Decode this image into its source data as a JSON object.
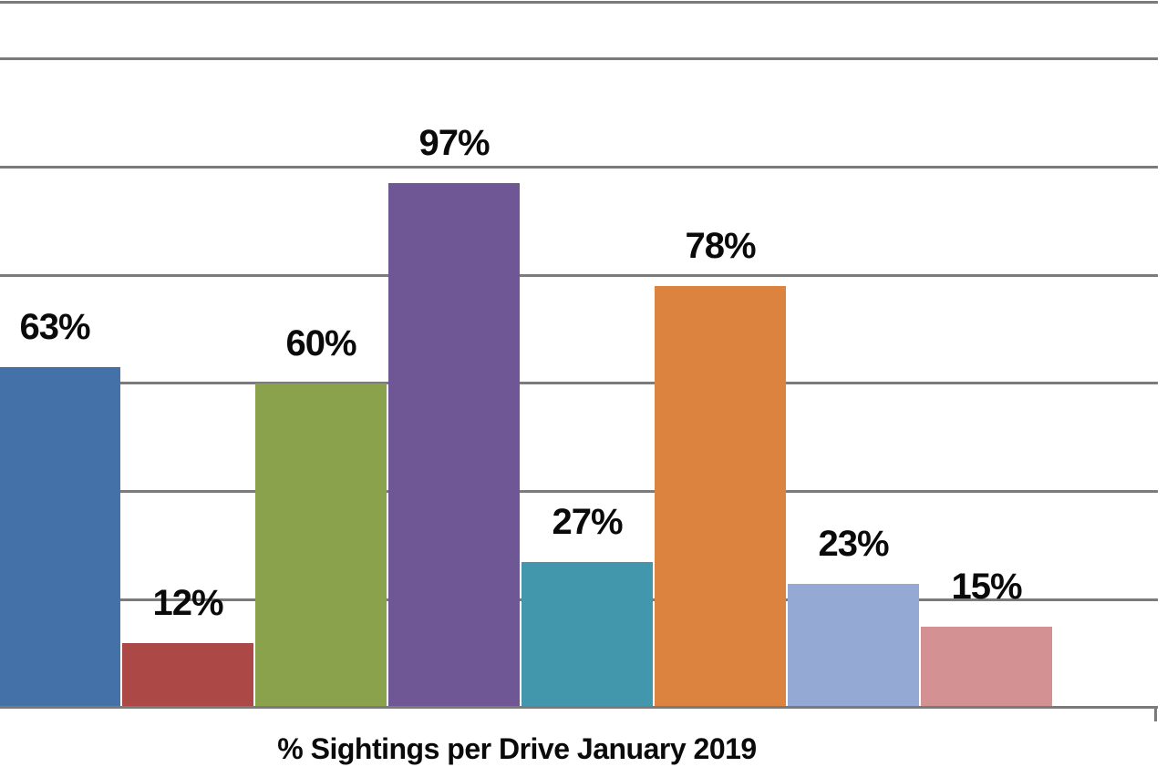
{
  "chart_data": {
    "type": "bar",
    "title": "% Sightings per Drive January 2019",
    "title_position": "below-x-axis",
    "values": [
      63,
      12,
      60,
      97,
      27,
      78,
      23,
      15
    ],
    "data_labels": [
      "63%",
      "12%",
      "60%",
      "97%",
      "27%",
      "78%",
      "23%",
      "15%"
    ],
    "bar_colors": [
      "#4472a8",
      "#ac4845",
      "#8ba24d",
      "#6f5694",
      "#4397ac",
      "#dc843f",
      "#95a9d5",
      "#d39194"
    ],
    "unit": "%",
    "ylim": [
      0,
      130
    ],
    "gridlines": [
      20,
      40,
      60,
      80,
      100,
      120
    ],
    "grid": true,
    "legend": false,
    "y_axis_tick_labels_visible": false,
    "x_axis_category_labels_visible": false,
    "axis_color": "#7b7b7b",
    "label_color": "#0a0a0a",
    "background_color": "#ffffff",
    "notes": "first bar partially cropped at left image edge; x axis has end tick at right"
  }
}
